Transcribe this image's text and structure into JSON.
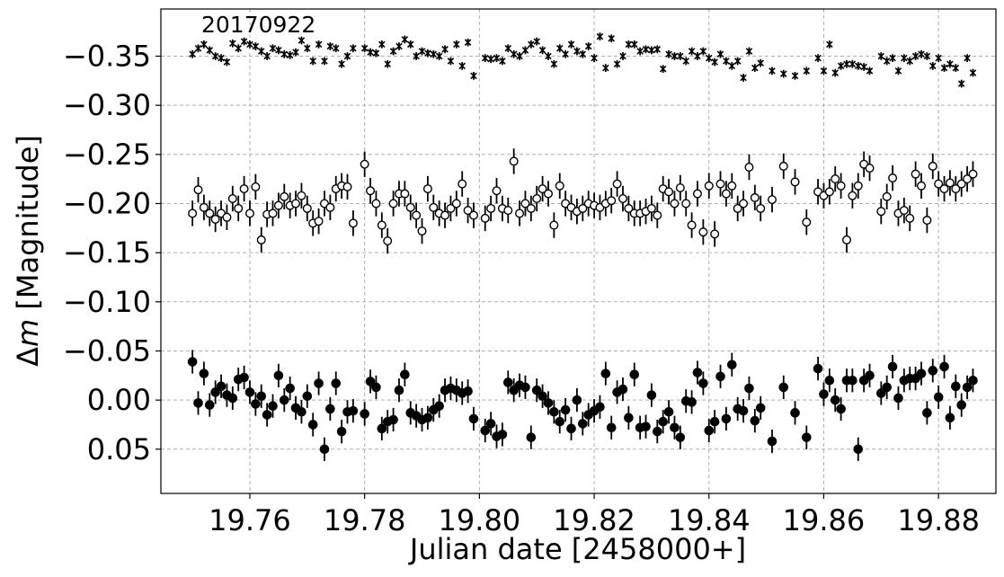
{
  "chart_data": {
    "type": "scatter",
    "annotation": "20170922",
    "xlabel": "Julian date [2458000+]",
    "ylabel_prefix": "Δ",
    "ylabel_var": "m",
    "ylabel_suffix": " [Magnitude]",
    "xlim": [
      19.7445,
      19.89
    ],
    "ylim": [
      0.095,
      -0.398
    ],
    "y_inverted": true,
    "grid": true,
    "grid_style": "dashed",
    "x_ticks": [
      19.76,
      19.78,
      19.8,
      19.82,
      19.84,
      19.86,
      19.88
    ],
    "x_tick_labels": [
      "19.76",
      "19.78",
      "19.80",
      "19.82",
      "19.84",
      "19.86",
      "19.88"
    ],
    "y_ticks": [
      -0.35,
      -0.3,
      -0.25,
      -0.2,
      -0.15,
      -0.1,
      -0.05,
      0.0,
      0.05
    ],
    "y_tick_labels": [
      "−0.35",
      "−0.30",
      "−0.25",
      "−0.20",
      "−0.15",
      "−0.10",
      "−0.05",
      "0.00",
      "0.05"
    ],
    "colors": {
      "marker": "#000000",
      "grid": "#b0b0b0"
    },
    "series": [
      {
        "marker": "x",
        "x": [
          19.75,
          19.751,
          19.752,
          19.753,
          19.754,
          19.755,
          19.756,
          19.757,
          19.758,
          19.759,
          19.76,
          19.761,
          19.762,
          19.763,
          19.764,
          19.765,
          19.766,
          19.767,
          19.768,
          19.769,
          19.77,
          19.771,
          19.772,
          19.773,
          19.774,
          19.775,
          19.776,
          19.777,
          19.778,
          19.78,
          19.781,
          19.782,
          19.783,
          19.784,
          19.785,
          19.786,
          19.787,
          19.788,
          19.789,
          19.79,
          19.791,
          19.792,
          19.793,
          19.794,
          19.795,
          19.796,
          19.797,
          19.798,
          19.799,
          19.801,
          19.802,
          19.803,
          19.804,
          19.805,
          19.806,
          19.807,
          19.808,
          19.809,
          19.81,
          19.811,
          19.812,
          19.813,
          19.814,
          19.815,
          19.816,
          19.817,
          19.818,
          19.819,
          19.82,
          19.821,
          19.822,
          19.823,
          19.824,
          19.825,
          19.826,
          19.827,
          19.828,
          19.829,
          19.83,
          19.831,
          19.832,
          19.833,
          19.834,
          19.835,
          19.836,
          19.837,
          19.838,
          19.839,
          19.84,
          19.841,
          19.842,
          19.843,
          19.844,
          19.845,
          19.846,
          19.847,
          19.848,
          19.849,
          19.851,
          19.853,
          19.855,
          19.857,
          19.859,
          19.86,
          19.861,
          19.862,
          19.863,
          19.864,
          19.865,
          19.866,
          19.867,
          19.868,
          19.87,
          19.871,
          19.872,
          19.873,
          19.874,
          19.875,
          19.876,
          19.877,
          19.878,
          19.879,
          19.88,
          19.881,
          19.882,
          19.883,
          19.884,
          19.885,
          19.886
        ],
        "y": [
          -0.352,
          -0.358,
          -0.362,
          -0.356,
          -0.35,
          -0.348,
          -0.344,
          -0.363,
          -0.358,
          -0.365,
          -0.362,
          -0.36,
          -0.355,
          -0.35,
          -0.358,
          -0.356,
          -0.352,
          -0.351,
          -0.354,
          -0.366,
          -0.358,
          -0.345,
          -0.362,
          -0.345,
          -0.36,
          -0.358,
          -0.342,
          -0.35,
          -0.358,
          -0.358,
          -0.354,
          -0.353,
          -0.362,
          -0.342,
          -0.355,
          -0.36,
          -0.367,
          -0.362,
          -0.35,
          -0.355,
          -0.353,
          -0.352,
          -0.35,
          -0.357,
          -0.345,
          -0.362,
          -0.34,
          -0.364,
          -0.33,
          -0.348,
          -0.347,
          -0.348,
          -0.345,
          -0.358,
          -0.352,
          -0.35,
          -0.356,
          -0.362,
          -0.365,
          -0.356,
          -0.35,
          -0.342,
          -0.358,
          -0.352,
          -0.362,
          -0.355,
          -0.352,
          -0.36,
          -0.348,
          -0.37,
          -0.338,
          -0.368,
          -0.342,
          -0.35,
          -0.362,
          -0.362,
          -0.355,
          -0.357,
          -0.356,
          -0.357,
          -0.337,
          -0.352,
          -0.35,
          -0.35,
          -0.345,
          -0.355,
          -0.35,
          -0.355,
          -0.348,
          -0.344,
          -0.352,
          -0.345,
          -0.34,
          -0.345,
          -0.328,
          -0.355,
          -0.338,
          -0.343,
          -0.335,
          -0.332,
          -0.33,
          -0.335,
          -0.348,
          -0.335,
          -0.362,
          -0.333,
          -0.34,
          -0.342,
          -0.342,
          -0.34,
          -0.339,
          -0.335,
          -0.35,
          -0.345,
          -0.348,
          -0.335,
          -0.348,
          -0.345,
          -0.35,
          -0.352,
          -0.35,
          -0.34,
          -0.348,
          -0.338,
          -0.342,
          -0.338,
          -0.322,
          -0.348,
          -0.333
        ],
        "yerr": 0.004
      },
      {
        "marker": "open-circle",
        "x": [
          19.75,
          19.751,
          19.752,
          19.753,
          19.754,
          19.755,
          19.756,
          19.757,
          19.758,
          19.759,
          19.76,
          19.761,
          19.762,
          19.763,
          19.764,
          19.765,
          19.766,
          19.767,
          19.768,
          19.769,
          19.77,
          19.771,
          19.772,
          19.773,
          19.774,
          19.775,
          19.776,
          19.777,
          19.778,
          19.78,
          19.781,
          19.782,
          19.783,
          19.784,
          19.785,
          19.786,
          19.787,
          19.788,
          19.789,
          19.79,
          19.791,
          19.792,
          19.793,
          19.794,
          19.795,
          19.796,
          19.797,
          19.798,
          19.799,
          19.801,
          19.802,
          19.803,
          19.804,
          19.805,
          19.806,
          19.807,
          19.808,
          19.809,
          19.81,
          19.811,
          19.812,
          19.813,
          19.814,
          19.815,
          19.816,
          19.817,
          19.818,
          19.819,
          19.82,
          19.821,
          19.822,
          19.823,
          19.824,
          19.825,
          19.826,
          19.827,
          19.828,
          19.829,
          19.83,
          19.831,
          19.832,
          19.833,
          19.834,
          19.835,
          19.836,
          19.837,
          19.838,
          19.839,
          19.84,
          19.841,
          19.842,
          19.843,
          19.844,
          19.845,
          19.846,
          19.847,
          19.848,
          19.849,
          19.851,
          19.853,
          19.855,
          19.857,
          19.859,
          19.86,
          19.861,
          19.862,
          19.863,
          19.864,
          19.865,
          19.866,
          19.867,
          19.868,
          19.87,
          19.871,
          19.872,
          19.873,
          19.874,
          19.875,
          19.876,
          19.877,
          19.878,
          19.879,
          19.88,
          19.881,
          19.882,
          19.883,
          19.884,
          19.885,
          19.886
        ],
        "y": [
          -0.19,
          -0.214,
          -0.196,
          -0.19,
          -0.184,
          -0.19,
          -0.186,
          -0.205,
          -0.195,
          -0.215,
          -0.19,
          -0.217,
          -0.163,
          -0.189,
          -0.19,
          -0.198,
          -0.207,
          -0.198,
          -0.2,
          -0.208,
          -0.195,
          -0.18,
          -0.182,
          -0.2,
          -0.196,
          -0.215,
          -0.218,
          -0.217,
          -0.18,
          -0.24,
          -0.213,
          -0.2,
          -0.178,
          -0.162,
          -0.2,
          -0.21,
          -0.21,
          -0.196,
          -0.188,
          -0.172,
          -0.215,
          -0.196,
          -0.19,
          -0.188,
          -0.195,
          -0.2,
          -0.22,
          -0.193,
          -0.188,
          -0.185,
          -0.195,
          -0.213,
          -0.195,
          -0.193,
          -0.243,
          -0.19,
          -0.2,
          -0.195,
          -0.205,
          -0.215,
          -0.21,
          -0.178,
          -0.218,
          -0.2,
          -0.196,
          -0.192,
          -0.195,
          -0.2,
          -0.198,
          -0.196,
          -0.2,
          -0.203,
          -0.22,
          -0.205,
          -0.195,
          -0.19,
          -0.19,
          -0.192,
          -0.195,
          -0.188,
          -0.215,
          -0.212,
          -0.2,
          -0.216,
          -0.2,
          -0.178,
          -0.21,
          -0.171,
          -0.218,
          -0.169,
          -0.22,
          -0.21,
          -0.218,
          -0.195,
          -0.2,
          -0.237,
          -0.206,
          -0.195,
          -0.204,
          -0.238,
          -0.222,
          -0.181,
          -0.212,
          -0.208,
          -0.212,
          -0.225,
          -0.218,
          -0.163,
          -0.208,
          -0.218,
          -0.24,
          -0.236,
          -0.192,
          -0.207,
          -0.226,
          -0.19,
          -0.193,
          -0.185,
          -0.23,
          -0.218,
          -0.183,
          -0.238,
          -0.22,
          -0.215,
          -0.221,
          -0.215,
          -0.22,
          -0.225,
          -0.23
        ],
        "yerr": 0.013
      },
      {
        "marker": "filled-circle",
        "x": [
          19.75,
          19.751,
          19.752,
          19.753,
          19.754,
          19.755,
          19.756,
          19.757,
          19.758,
          19.759,
          19.76,
          19.761,
          19.762,
          19.763,
          19.764,
          19.765,
          19.766,
          19.767,
          19.768,
          19.769,
          19.77,
          19.771,
          19.772,
          19.773,
          19.774,
          19.775,
          19.776,
          19.777,
          19.778,
          19.78,
          19.781,
          19.782,
          19.783,
          19.784,
          19.785,
          19.786,
          19.787,
          19.788,
          19.789,
          19.79,
          19.791,
          19.792,
          19.793,
          19.794,
          19.795,
          19.796,
          19.797,
          19.798,
          19.799,
          19.801,
          19.802,
          19.803,
          19.804,
          19.805,
          19.806,
          19.807,
          19.808,
          19.809,
          19.81,
          19.811,
          19.812,
          19.813,
          19.814,
          19.815,
          19.816,
          19.817,
          19.818,
          19.819,
          19.82,
          19.821,
          19.822,
          19.823,
          19.824,
          19.825,
          19.826,
          19.827,
          19.828,
          19.829,
          19.83,
          19.831,
          19.832,
          19.833,
          19.834,
          19.835,
          19.836,
          19.837,
          19.838,
          19.839,
          19.84,
          19.841,
          19.842,
          19.843,
          19.844,
          19.845,
          19.846,
          19.847,
          19.848,
          19.849,
          19.851,
          19.853,
          19.855,
          19.857,
          19.859,
          19.86,
          19.861,
          19.862,
          19.863,
          19.864,
          19.865,
          19.866,
          19.867,
          19.868,
          19.87,
          19.871,
          19.872,
          19.873,
          19.874,
          19.875,
          19.876,
          19.877,
          19.878,
          19.879,
          19.88,
          19.881,
          19.882,
          19.883,
          19.884,
          19.885,
          19.886
        ],
        "y": [
          -0.039,
          0.003,
          -0.027,
          0.005,
          -0.008,
          -0.014,
          -0.005,
          -0.002,
          -0.021,
          -0.023,
          -0.008,
          0.004,
          -0.004,
          0.015,
          0.006,
          -0.025,
          0.0,
          -0.012,
          0.008,
          0.012,
          -0.004,
          0.025,
          -0.017,
          0.05,
          0.009,
          -0.017,
          0.032,
          0.012,
          0.011,
          0.014,
          -0.019,
          -0.013,
          0.029,
          0.022,
          0.02,
          -0.01,
          -0.026,
          0.013,
          0.016,
          0.02,
          0.018,
          0.01,
          0.006,
          -0.01,
          -0.012,
          -0.01,
          -0.007,
          -0.009,
          0.019,
          0.031,
          0.024,
          0.037,
          0.035,
          -0.018,
          -0.01,
          -0.015,
          -0.013,
          0.038,
          -0.01,
          -0.004,
          0.003,
          0.012,
          0.022,
          0.01,
          0.029,
          0.0,
          0.024,
          0.015,
          0.011,
          0.007,
          -0.027,
          0.028,
          -0.008,
          -0.011,
          0.018,
          -0.026,
          0.028,
          0.027,
          -0.005,
          0.032,
          0.022,
          0.012,
          0.028,
          0.038,
          0.001,
          0.002,
          -0.028,
          -0.017,
          0.031,
          0.022,
          -0.024,
          0.019,
          -0.036,
          0.009,
          0.011,
          -0.012,
          0.021,
          0.008,
          0.042,
          -0.013,
          0.013,
          0.038,
          -0.032,
          -0.006,
          -0.02,
          0.0,
          0.009,
          -0.02,
          -0.02,
          0.05,
          -0.02,
          -0.025,
          -0.007,
          -0.013,
          -0.034,
          -0.002,
          -0.02,
          -0.022,
          -0.022,
          -0.027,
          0.013,
          -0.03,
          -0.003,
          -0.034,
          0.018,
          -0.014,
          0.005,
          -0.013,
          -0.02
        ],
        "yerr": 0.012
      }
    ]
  }
}
